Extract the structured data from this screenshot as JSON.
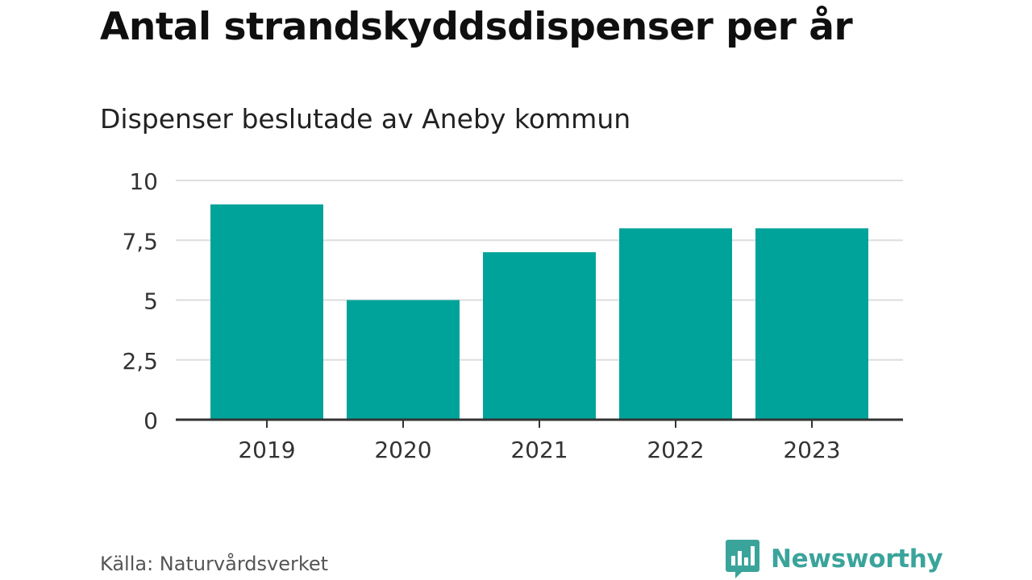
{
  "title": "Antal strandskyddsdispenser per år",
  "subtitle": "Dispenser beslutade av Aneby kommun",
  "source": "Källa: Naturvårdsverket",
  "brand": {
    "name": "Newsworthy",
    "logo_icon": "bar-chart-speech-bubble-icon",
    "color": "#3aa49b"
  },
  "chart_data": {
    "type": "bar",
    "title": "Antal strandskyddsdispenser per år",
    "subtitle": "Dispenser beslutade av Aneby kommun",
    "categories": [
      "2019",
      "2020",
      "2021",
      "2022",
      "2023"
    ],
    "values": [
      9,
      5,
      7,
      8,
      8
    ],
    "ylim": [
      0,
      10
    ],
    "yticks": [
      0,
      2.5,
      5,
      7.5,
      10
    ],
    "ytick_labels": [
      "0",
      "2,5",
      "5",
      "7,5",
      "10"
    ],
    "xlabel": "",
    "ylabel": "",
    "grid": true,
    "bar_color": "#00a39a",
    "grid_color": "#dddddd",
    "axis_color": "#333333"
  }
}
